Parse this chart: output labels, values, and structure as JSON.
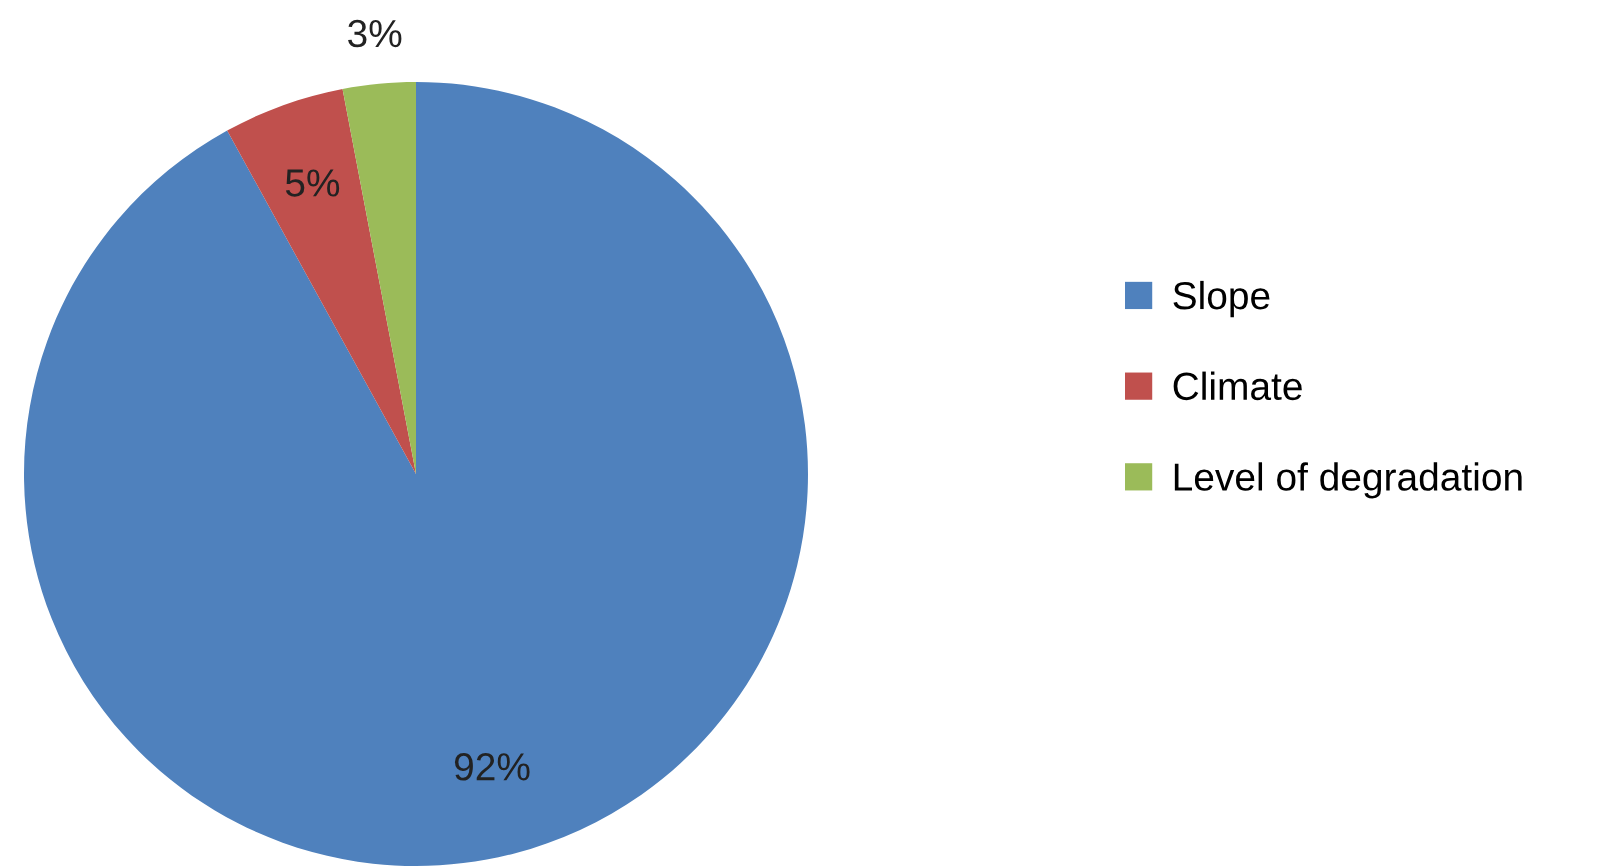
{
  "chart_data": {
    "type": "pie",
    "categories": [
      "Slope",
      "Climate",
      "Level of degradation"
    ],
    "values": [
      92,
      5,
      3
    ],
    "colors": [
      "#4f81bd",
      "#c0504d",
      "#9bbb59"
    ],
    "value_labels": [
      "92%",
      "5%",
      "3%"
    ],
    "legend": "right"
  }
}
